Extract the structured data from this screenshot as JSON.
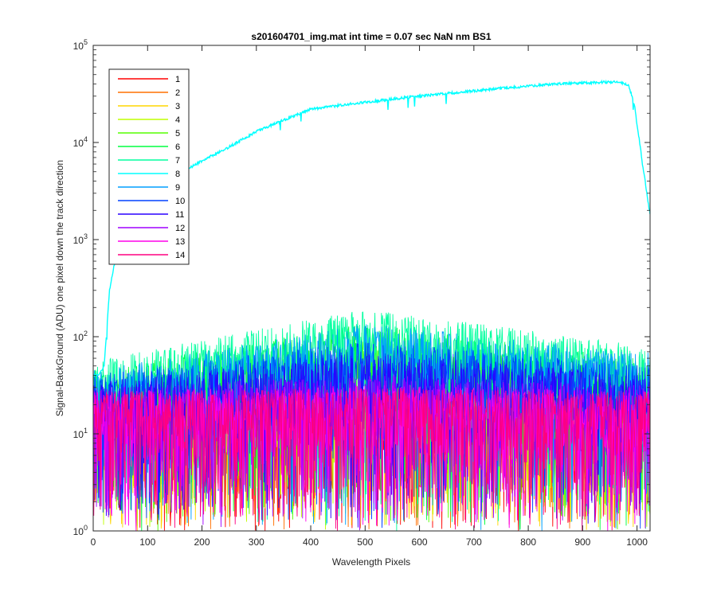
{
  "chart_data": {
    "type": "line",
    "title": "s201604701_img.mat int time = 0.07 sec  NaN nm BS1",
    "xlabel": "Wavelength Pixels",
    "ylabel": "Signal-BackGround (ADU) one pixel down the track direction",
    "xlim": [
      0,
      1024
    ],
    "ylim": [
      1,
      100000
    ],
    "yscale": "log",
    "grid": false,
    "legend_position": "top-left",
    "x_ticks": [
      0,
      100,
      200,
      300,
      400,
      500,
      600,
      700,
      800,
      900,
      1000
    ],
    "y_ticks": [
      1,
      10,
      100,
      1000,
      10000,
      100000
    ],
    "y_tick_labels": [
      {
        "base": "10",
        "exp": "0"
      },
      {
        "base": "10",
        "exp": "1"
      },
      {
        "base": "10",
        "exp": "2"
      },
      {
        "base": "10",
        "exp": "3"
      },
      {
        "base": "10",
        "exp": "4"
      },
      {
        "base": "10",
        "exp": "5"
      }
    ],
    "series": [
      {
        "name": "1",
        "color": "#ff0000",
        "profile": {
          "x": [
            0,
            500,
            1024
          ],
          "y": [
            12,
            12,
            12
          ]
        }
      },
      {
        "name": "2",
        "color": "#ff7000",
        "profile": {
          "x": [
            0,
            500,
            1024
          ],
          "y": [
            12,
            13,
            12
          ]
        }
      },
      {
        "name": "3",
        "color": "#ffd500",
        "profile": {
          "x": [
            0,
            500,
            1024
          ],
          "y": [
            12,
            14,
            12
          ]
        }
      },
      {
        "name": "4",
        "color": "#bfff00",
        "profile": {
          "x": [
            0,
            500,
            1024
          ],
          "y": [
            13,
            16,
            13
          ]
        }
      },
      {
        "name": "5",
        "color": "#55ff00",
        "profile": {
          "x": [
            0,
            500,
            1024
          ],
          "y": [
            15,
            40,
            20
          ]
        }
      },
      {
        "name": "6",
        "color": "#00ff40",
        "profile": {
          "x": [
            0,
            500,
            1024
          ],
          "y": [
            20,
            60,
            25
          ]
        }
      },
      {
        "name": "7",
        "color": "#00ff9f",
        "profile": {
          "x": [
            0,
            500,
            1024
          ],
          "y": [
            25,
            85,
            35
          ]
        }
      },
      {
        "name": "8",
        "color": "#00ffff",
        "profile": {
          "x": [
            0,
            5,
            10,
            15,
            20,
            25,
            30,
            40,
            50,
            60,
            80,
            100,
            130,
            160,
            200,
            250,
            300,
            350,
            400,
            450,
            500,
            550,
            600,
            650,
            700,
            750,
            800,
            850,
            900,
            950,
            970,
            985,
            995,
            1000,
            1005,
            1010,
            1015,
            1020,
            1024
          ],
          "y": [
            40,
            40,
            40,
            45,
            50,
            120,
            300,
            600,
            800,
            1100,
            1800,
            2500,
            3500,
            4800,
            6500,
            9000,
            13000,
            17000,
            22000,
            24000,
            26000,
            28000,
            30000,
            32000,
            34000,
            36000,
            38000,
            40000,
            41000,
            42000,
            42000,
            38000,
            25000,
            15000,
            10000,
            6000,
            4000,
            2500,
            1800
          ]
        }
      },
      {
        "name": "9",
        "color": "#009fff",
        "profile": {
          "x": [
            0,
            500,
            1024
          ],
          "y": [
            20,
            60,
            30
          ]
        }
      },
      {
        "name": "10",
        "color": "#0040ff",
        "profile": {
          "x": [
            0,
            500,
            1024
          ],
          "y": [
            18,
            40,
            22
          ]
        }
      },
      {
        "name": "11",
        "color": "#2a00ff",
        "profile": {
          "x": [
            0,
            500,
            1024
          ],
          "y": [
            15,
            30,
            18
          ]
        }
      },
      {
        "name": "12",
        "color": "#9f00ff",
        "profile": {
          "x": [
            0,
            500,
            1024
          ],
          "y": [
            13,
            18,
            14
          ]
        }
      },
      {
        "name": "13",
        "color": "#ff00ea",
        "profile": {
          "x": [
            0,
            500,
            1024
          ],
          "y": [
            12,
            14,
            12
          ]
        }
      },
      {
        "name": "14",
        "color": "#ff0080",
        "profile": {
          "x": [
            0,
            500,
            1024
          ],
          "y": [
            12,
            13,
            12
          ]
        }
      }
    ]
  }
}
